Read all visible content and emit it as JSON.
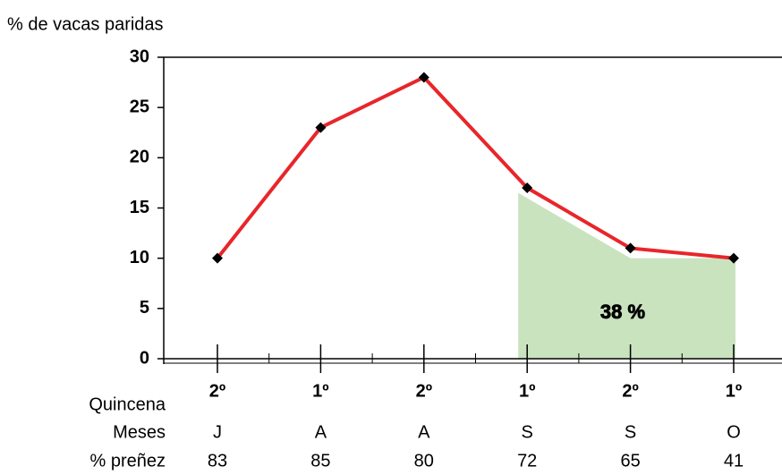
{
  "chart_data": {
    "type": "line",
    "y_label": "% de vacas paridas",
    "category_label": "Quincena",
    "categories": [
      "2º",
      "1º",
      "2º",
      "1º",
      "2º",
      "1º"
    ],
    "extra_rows": [
      {
        "label": "Meses",
        "values": [
          "J",
          "A",
          "A",
          "S",
          "S",
          "O"
        ]
      },
      {
        "label": "% preñez",
        "values": [
          83,
          85,
          80,
          72,
          65,
          41
        ]
      }
    ],
    "series": [
      {
        "color": "#e8262a",
        "marker_color": "#000000",
        "values": [
          10,
          23,
          28,
          17,
          11,
          10
        ]
      }
    ],
    "shaded_area": {
      "color": "#c9e3bf",
      "values": [
        null,
        null,
        null,
        16.5,
        10,
        10
      ]
    },
    "annotation": "38 %",
    "ylim": [
      0,
      30
    ],
    "yticks": [
      0,
      5,
      10,
      15,
      20,
      25,
      30
    ]
  }
}
